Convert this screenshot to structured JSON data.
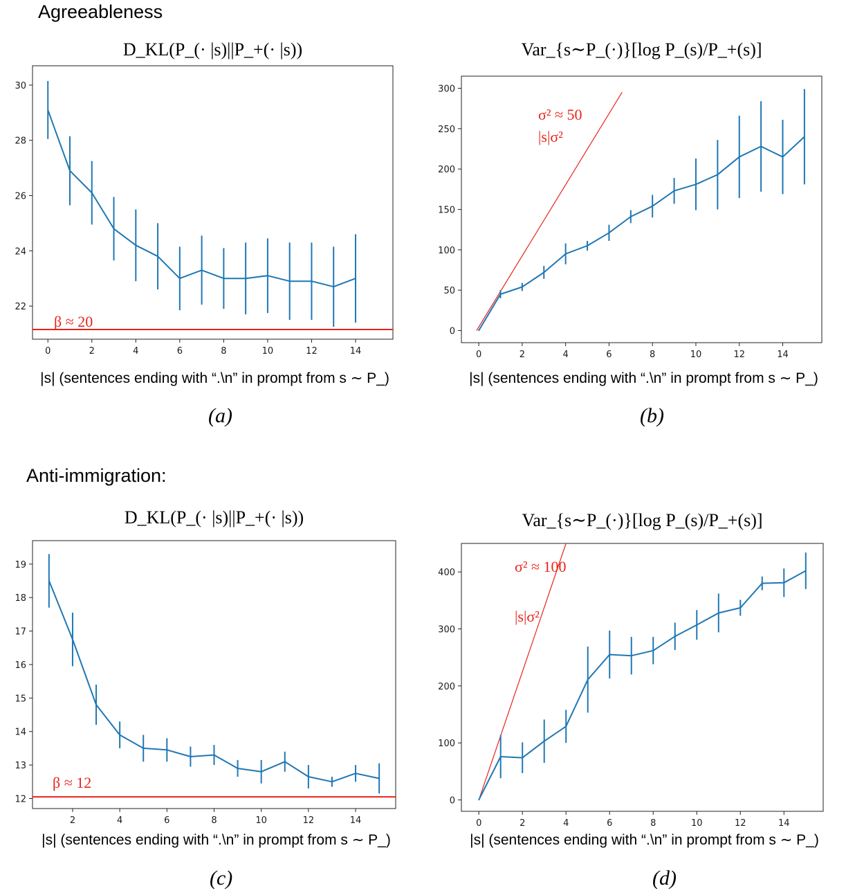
{
  "sections": {
    "top": "Agreeableness",
    "bottom": "Anti-immigration:"
  },
  "colors": {
    "series": "#1f77b4",
    "reference": "#e8231b",
    "frame": "#222222"
  },
  "panel_labels": [
    "(a)",
    "(b)",
    "(c)",
    "(d)"
  ],
  "chart_data": [
    {
      "type": "line",
      "title": "D_KL(P_(· |s)||P_+(· |s))",
      "xlabel": "|s| (sentences ending with “.\\n” in prompt from s ∼ P_)",
      "ylabel": "",
      "xlim": [
        -0.7,
        15.7
      ],
      "ylim": [
        20.8,
        30.7
      ],
      "xticks": [
        0,
        2,
        4,
        6,
        8,
        10,
        12,
        14
      ],
      "yticks": [
        22,
        24,
        26,
        28,
        30
      ],
      "grid": false,
      "series": [
        {
          "x": [
            0,
            1,
            2,
            3,
            4,
            5,
            6,
            7,
            8,
            9,
            10,
            11,
            12,
            13,
            14
          ],
          "y": [
            29.1,
            26.9,
            26.1,
            24.8,
            24.2,
            23.8,
            23.0,
            23.3,
            23.0,
            23.0,
            23.1,
            22.9,
            22.9,
            22.7,
            23.0
          ],
          "yerr": [
            1.05,
            1.25,
            1.15,
            1.15,
            1.3,
            1.2,
            1.15,
            1.25,
            1.1,
            1.3,
            1.35,
            1.4,
            1.4,
            1.45,
            1.6
          ]
        }
      ],
      "reference_line": {
        "kind": "horizontal",
        "y": 21.15,
        "label": "β ≈ 20"
      }
    },
    {
      "type": "line",
      "title": "Var_{s∼P_(·)}[log P_(s)/P_+(s)]",
      "xlabel": "|s| (sentences ending with “.\\n” in prompt from s ∼ P_)",
      "ylabel": "",
      "xlim": [
        -0.8,
        15.8
      ],
      "ylim": [
        -15,
        315
      ],
      "xticks": [
        0,
        2,
        4,
        6,
        8,
        10,
        12,
        14
      ],
      "yticks": [
        0,
        50,
        100,
        150,
        200,
        250,
        300
      ],
      "grid": false,
      "series": [
        {
          "x": [
            0,
            1,
            2,
            3,
            4,
            5,
            6,
            7,
            8,
            9,
            10,
            11,
            12,
            13,
            14,
            15
          ],
          "y": [
            0,
            45,
            54,
            72,
            95,
            105,
            121,
            141,
            154,
            173,
            181,
            193,
            215,
            228,
            215,
            240
          ],
          "yerr": [
            0,
            5,
            5,
            8,
            13,
            6,
            10,
            8,
            14,
            16,
            32,
            43,
            51,
            56,
            46,
            59
          ]
        }
      ],
      "reference_line": {
        "kind": "line",
        "x": [
          -0.1,
          6.6
        ],
        "y": [
          0,
          295
        ],
        "label_top": "σ² ≈ 50",
        "label_bottom": "|s|σ²"
      }
    },
    {
      "type": "line",
      "title": "D_KL(P_(· |s)||P_+(· |s))",
      "xlabel": "|s| (sentences ending with “.\\n” in prompt from s ∼ P_)",
      "ylabel": "",
      "xlim": [
        0.3,
        15.7
      ],
      "ylim": [
        11.7,
        19.7
      ],
      "xticks": [
        2,
        4,
        6,
        8,
        10,
        12,
        14
      ],
      "yticks": [
        12,
        13,
        14,
        15,
        16,
        17,
        18,
        19
      ],
      "grid": false,
      "series": [
        {
          "x": [
            1,
            2,
            3,
            4,
            5,
            6,
            7,
            8,
            9,
            10,
            11,
            12,
            13,
            14,
            15
          ],
          "y": [
            18.5,
            16.75,
            14.8,
            13.9,
            13.5,
            13.45,
            13.25,
            13.3,
            12.9,
            12.8,
            13.1,
            12.65,
            12.5,
            12.75,
            12.6
          ],
          "yerr": [
            0.8,
            0.8,
            0.6,
            0.4,
            0.4,
            0.35,
            0.3,
            0.3,
            0.25,
            0.35,
            0.3,
            0.35,
            0.15,
            0.25,
            0.45
          ]
        }
      ],
      "reference_line": {
        "kind": "horizontal",
        "y": 12.05,
        "label": "β ≈ 12"
      }
    },
    {
      "type": "line",
      "title": "Var_{s∼P_(·)}[log P_(s)/P_+(s)]",
      "xlabel": "|s| (sentences ending with “.\\n” in prompt from s ∼ P_)",
      "ylabel": "",
      "xlim": [
        -0.8,
        15.8
      ],
      "ylim": [
        -20,
        450
      ],
      "xticks": [
        0,
        2,
        4,
        6,
        8,
        10,
        12,
        14
      ],
      "yticks": [
        0,
        100,
        200,
        300,
        400
      ],
      "grid": false,
      "series": [
        {
          "x": [
            0,
            1,
            2,
            3,
            4,
            5,
            6,
            7,
            8,
            9,
            10,
            11,
            12,
            13,
            14,
            15
          ],
          "y": [
            0,
            76,
            74,
            103,
            129,
            211,
            255,
            253,
            262,
            287,
            307,
            328,
            337,
            380,
            381,
            402
          ],
          "yerr": [
            0,
            38,
            27,
            38,
            29,
            58,
            42,
            33,
            24,
            24,
            26,
            34,
            14,
            12,
            25,
            32
          ]
        }
      ],
      "reference_line": {
        "kind": "line",
        "x": [
          0,
          4
        ],
        "y": [
          0,
          450
        ],
        "label_top": "σ² ≈ 100",
        "label_bottom": "|s|σ²"
      }
    }
  ]
}
